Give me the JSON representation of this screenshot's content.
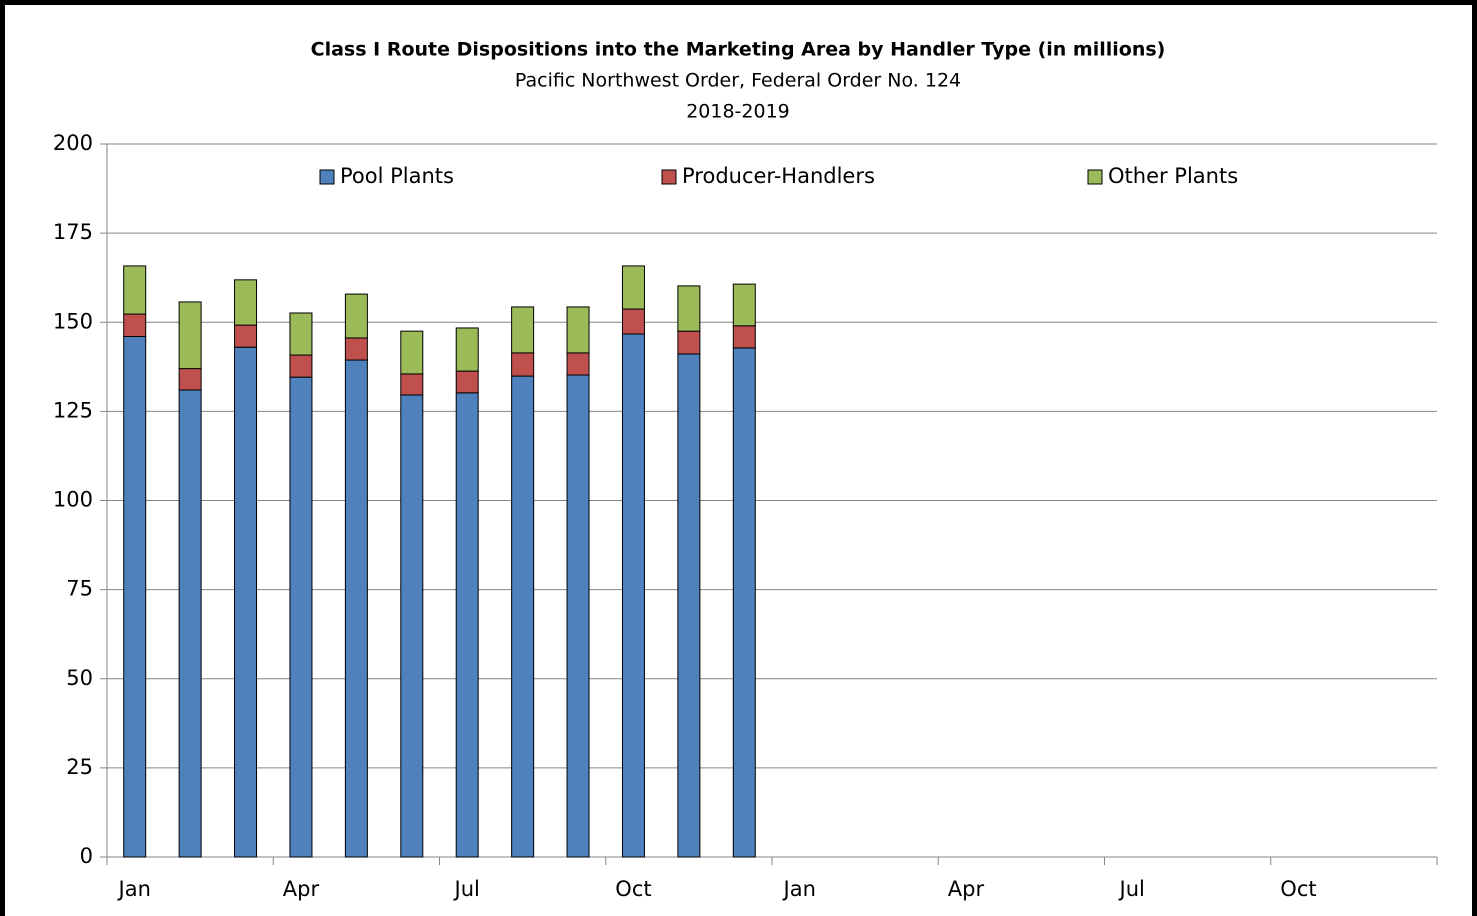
{
  "chart_data": {
    "type": "stacked_bar",
    "title": "Class I Route Dispositions into the Marketing Area by Handler Type (in millions)",
    "subtitle": "Pacific Northwest Order, Federal Order No. 124",
    "subtitle2": "2018-2019",
    "categories": [
      "Jan",
      null,
      null,
      "Apr",
      null,
      null,
      "Jul",
      null,
      null,
      "Oct",
      null,
      null,
      "Jan",
      null,
      null,
      "Apr",
      null,
      null,
      "Jul",
      null,
      null,
      "Oct",
      null,
      null
    ],
    "series": [
      {
        "name": "Pool Plants",
        "color": "#4f81bd",
        "values": [
          146,
          131,
          143,
          134.6,
          139.4,
          129.6,
          130.2,
          134.9,
          135.2,
          146.7,
          141.1,
          142.8,
          null,
          null,
          null,
          null,
          null,
          null,
          null,
          null,
          null,
          null,
          null,
          null
        ]
      },
      {
        "name": "Producer-Handlers",
        "color": "#c0504d",
        "values": [
          6.3,
          6,
          6.2,
          6.2,
          6.2,
          5.9,
          6.1,
          6.5,
          6.2,
          7,
          6.4,
          6.2,
          null,
          null,
          null,
          null,
          null,
          null,
          null,
          null,
          null,
          null,
          null,
          null
        ]
      },
      {
        "name": "Other Plants",
        "color": "#9bbb59",
        "values": [
          13.5,
          18.7,
          12.7,
          11.8,
          12.3,
          12,
          12.1,
          12.9,
          12.9,
          12.1,
          12.7,
          11.7,
          null,
          null,
          null,
          null,
          null,
          null,
          null,
          null,
          null,
          null,
          null,
          null
        ]
      }
    ],
    "ylim": [
      0,
      200
    ],
    "yticks": [
      0,
      25,
      50,
      75,
      100,
      125,
      150,
      175,
      200
    ],
    "grid": true,
    "legend": "top"
  }
}
